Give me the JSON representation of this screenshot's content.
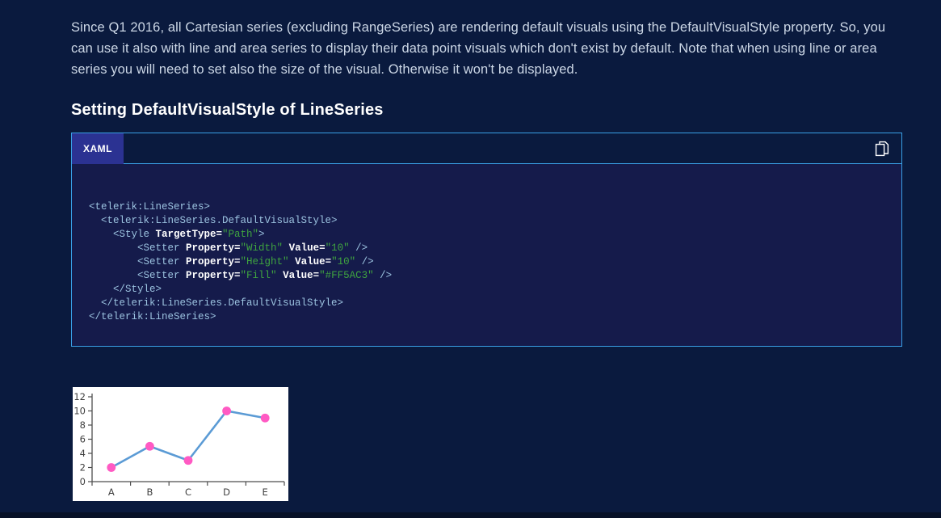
{
  "page": {
    "background": "#0a1a3e",
    "paragraph": "Since Q1 2016, all Cartesian series (excluding RangeSeries) are rendering default visuals using the DefaultVisualStyle property. So, you can use it also with line and area series to display their data point visuals which don't exist by default. Note that when using line or area series you will need to set also the size of the visual. Otherwise it won't be displayed.",
    "heading": "Setting DefaultVisualStyle of LineSeries"
  },
  "code_block": {
    "tab_label": "XAML",
    "copy_icon": "copy-icon",
    "colors": {
      "border_accent": "#39A0E6",
      "active_tab_bg": "#2B3292",
      "code_bg": "#151B4B",
      "tag": "#9CC3E0",
      "attribute": "#FFFFFF",
      "value": "#3FA43F"
    },
    "lines": [
      [
        {
          "c": "tag",
          "s": "<telerik:LineSeries>"
        }
      ],
      [
        {
          "c": "tag",
          "s": "  <telerik:LineSeries.DefaultVisualStyle>"
        }
      ],
      [
        {
          "c": "tag",
          "s": "    <Style "
        },
        {
          "c": "attr",
          "s": "TargetType="
        },
        {
          "c": "val",
          "s": "\"Path\""
        },
        {
          "c": "tag",
          "s": ">"
        }
      ],
      [
        {
          "c": "tag",
          "s": "        <Setter "
        },
        {
          "c": "attr",
          "s": "Property="
        },
        {
          "c": "val",
          "s": "\"Width\""
        },
        {
          "c": "tag",
          "s": " "
        },
        {
          "c": "attr",
          "s": "Value="
        },
        {
          "c": "val",
          "s": "\"10\""
        },
        {
          "c": "tag",
          "s": " />"
        }
      ],
      [
        {
          "c": "tag",
          "s": "        <Setter "
        },
        {
          "c": "attr",
          "s": "Property="
        },
        {
          "c": "val",
          "s": "\"Height\""
        },
        {
          "c": "tag",
          "s": " "
        },
        {
          "c": "attr",
          "s": "Value="
        },
        {
          "c": "val",
          "s": "\"10\""
        },
        {
          "c": "tag",
          "s": " />"
        }
      ],
      [
        {
          "c": "tag",
          "s": "        <Setter "
        },
        {
          "c": "attr",
          "s": "Property="
        },
        {
          "c": "val",
          "s": "\"Fill\""
        },
        {
          "c": "tag",
          "s": " "
        },
        {
          "c": "attr",
          "s": "Value="
        },
        {
          "c": "val",
          "s": "\"#FF5AC3\""
        },
        {
          "c": "tag",
          "s": " />"
        }
      ],
      [
        {
          "c": "tag",
          "s": "    </Style>"
        }
      ],
      [
        {
          "c": "tag",
          "s": "  </telerik:LineSeries.DefaultVisualStyle>"
        }
      ],
      [
        {
          "c": "tag",
          "s": "</telerik:LineSeries>"
        }
      ]
    ]
  },
  "chart_data": {
    "type": "line",
    "categories": [
      "A",
      "B",
      "C",
      "D",
      "E"
    ],
    "values": [
      2,
      5,
      3,
      10,
      9
    ],
    "title": "",
    "xlabel": "",
    "ylabel": "",
    "ylim": [
      0,
      12
    ],
    "ytick_step": 2,
    "grid": false,
    "legend": false,
    "line_color": "#5B9BD5",
    "point_color": "#FF5AC3",
    "axis_color": "#4D4D4D",
    "label_color": "#3F3F3F",
    "plot_background": "#FFFFFF"
  }
}
